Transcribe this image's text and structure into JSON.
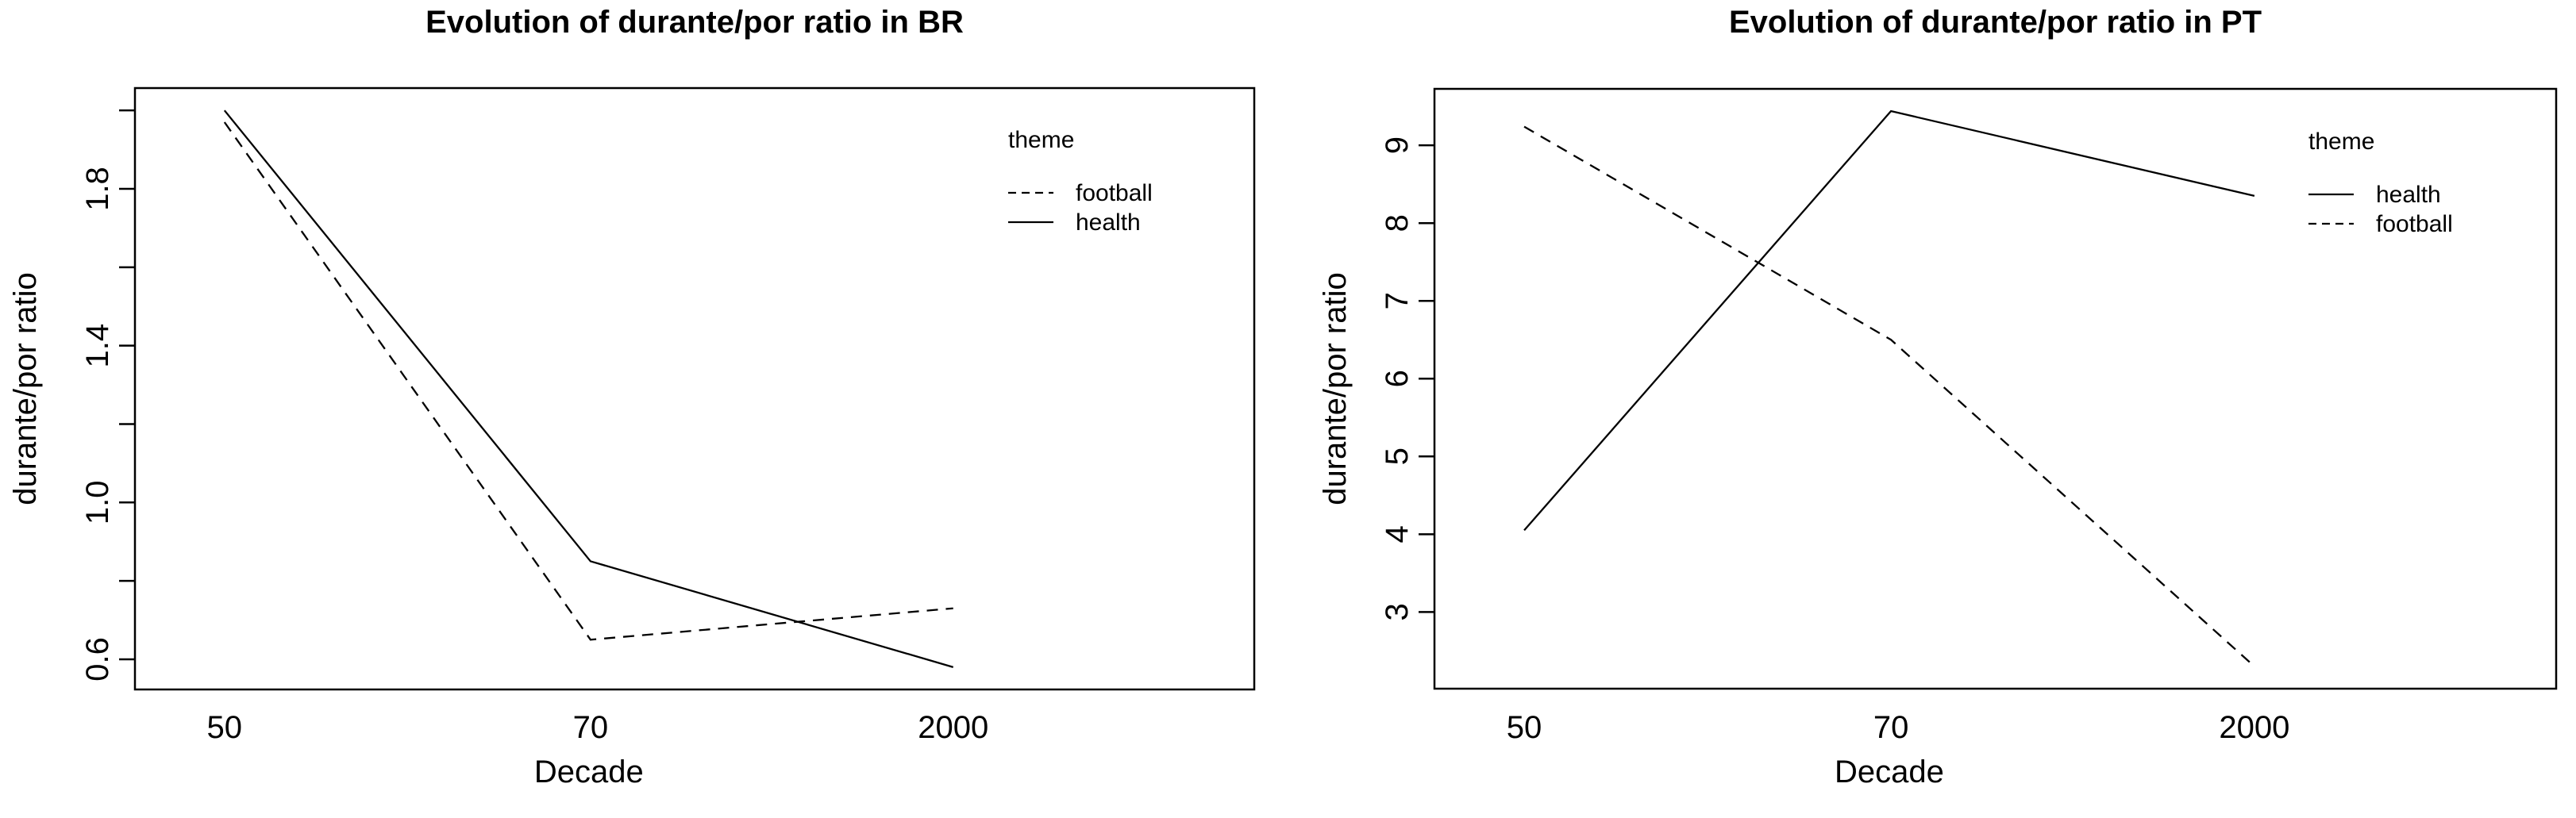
{
  "page": {
    "background": "#ffffff",
    "foreground": "#000000"
  },
  "chart_data": [
    {
      "type": "line",
      "region": "BR",
      "title": "Evolution of durante/por ratio in BR",
      "xlabel": "Decade",
      "ylabel": "durante/por ratio",
      "categories": [
        "50",
        "70",
        "2000"
      ],
      "series": [
        {
          "name": "football",
          "linetype": "dashed",
          "values": [
            1.97,
            0.65,
            0.73
          ]
        },
        {
          "name": "health",
          "linetype": "solid",
          "values": [
            2.0,
            0.85,
            0.58
          ]
        }
      ],
      "legend_title": "theme",
      "legend_position": "top-right-inside",
      "grid": false,
      "ylim": [
        0.523,
        2.057
      ],
      "yticks": [
        0.6,
        0.8,
        1.0,
        1.2,
        1.4,
        1.6,
        1.8,
        2.0
      ],
      "ytick_labels": [
        "0.6",
        "",
        "1.0",
        "",
        "1.4",
        "",
        "1.8",
        ""
      ]
    },
    {
      "type": "line",
      "region": "PT",
      "title": "Evolution of durante/por ratio in PT",
      "xlabel": "Decade",
      "ylabel": "durante/por ratio",
      "categories": [
        "50",
        "70",
        "2000"
      ],
      "series": [
        {
          "name": "health",
          "linetype": "solid",
          "values": [
            4.05,
            9.44,
            8.35
          ]
        },
        {
          "name": "football",
          "linetype": "dashed",
          "values": [
            9.24,
            6.5,
            2.3
          ]
        }
      ],
      "legend_title": "theme",
      "legend_position": "top-right-inside",
      "grid": false,
      "ylim": [
        2.014,
        9.726
      ],
      "yticks": [
        3,
        4,
        5,
        6,
        7,
        8,
        9
      ],
      "ytick_labels": [
        "3",
        "4",
        "5",
        "6",
        "7",
        "8",
        "9"
      ]
    }
  ]
}
